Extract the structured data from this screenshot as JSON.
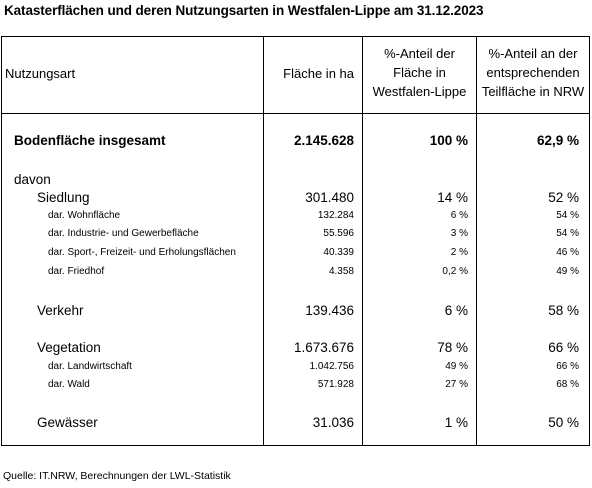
{
  "title": "Katasterflächen und deren Nutzungsarten in Westfalen-Lippe am 31.12.2023",
  "columns": {
    "c1": "Nutzungsart",
    "c2": "Fläche in ha",
    "c3": [
      "%-Anteil der",
      "Fläche in",
      "Westfalen-Lippe"
    ],
    "c4": [
      "%-Anteil an der",
      "entsprechenden",
      "Teilfläche in NRW"
    ]
  },
  "total": {
    "label": "Bodenfläche insgesamt",
    "area": "2.145.628",
    "share": "100 %",
    "nrw": "62,9 %"
  },
  "davon": "davon",
  "rows": [
    {
      "label": "Siedlung",
      "area": "301.480",
      "share": "14 %",
      "nrw": "52 %"
    },
    {
      "label": "dar. Wohnfläche",
      "area": "132.284",
      "share": "6 %",
      "nrw": "54 %"
    },
    {
      "label": "dar. Industrie- und Gewerbefläche",
      "area": "55.596",
      "share": "3 %",
      "nrw": "54 %"
    },
    {
      "label": "dar. Sport-, Freizeit- und Erholungsflächen",
      "area": "40.339",
      "share": "2 %",
      "nrw": "46 %"
    },
    {
      "label": "dar. Friedhof",
      "area": "4.358",
      "share": "0,2 %",
      "nrw": "49 %"
    },
    {
      "label": "Verkehr",
      "area": "139.436",
      "share": "6 %",
      "nrw": "58 %"
    },
    {
      "label": "Vegetation",
      "area": "1.673.676",
      "share": "78 %",
      "nrw": "66 %"
    },
    {
      "label": "dar. Landwirtschaft",
      "area": "1.042.756",
      "share": "49 %",
      "nrw": "66 %"
    },
    {
      "label": "dar. Wald",
      "area": "571.928",
      "share": "27 %",
      "nrw": "68 %"
    },
    {
      "label": "Gewässer",
      "area": "31.036",
      "share": "1 %",
      "nrw": "50 %"
    }
  ],
  "source": "Quelle: IT.NRW, Berechnungen der LWL-Statistik"
}
